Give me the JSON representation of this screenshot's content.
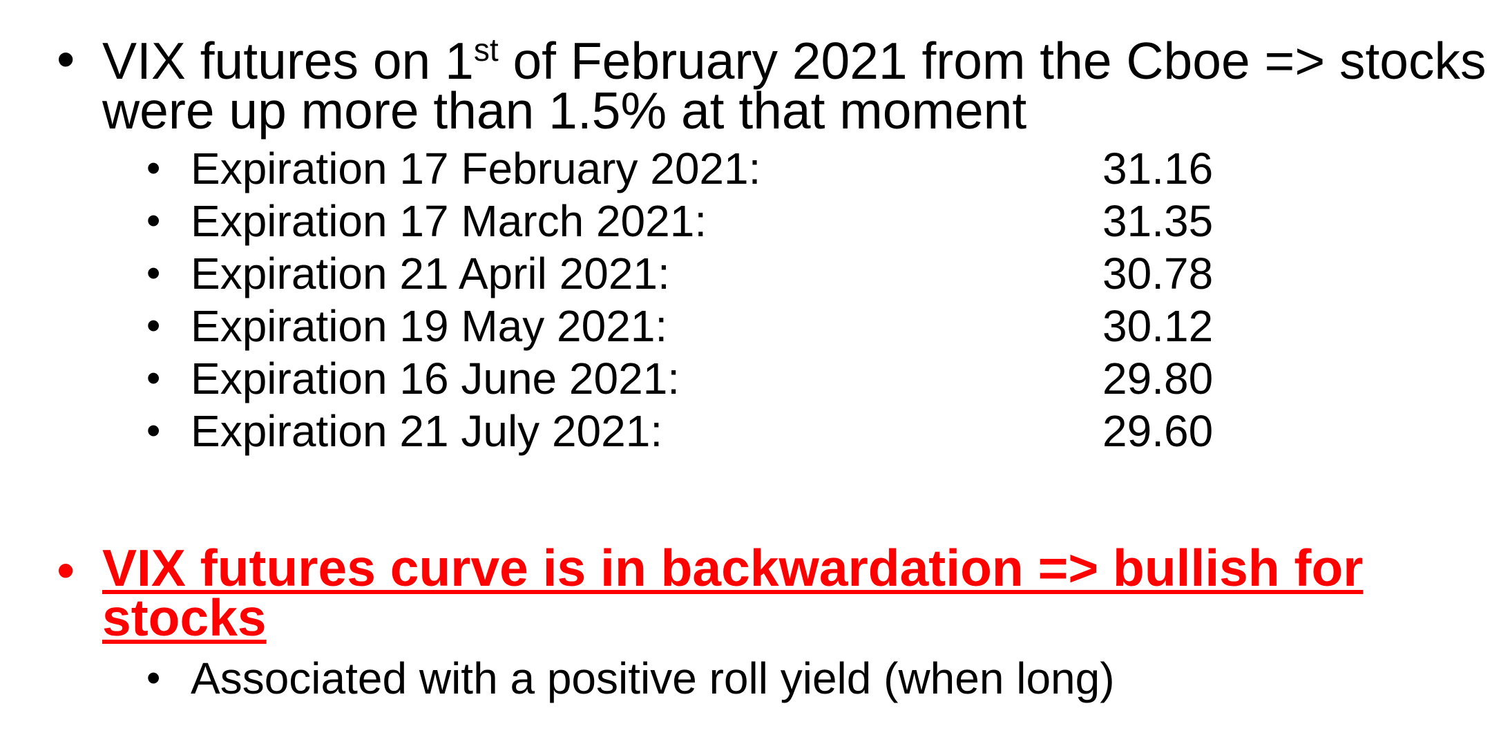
{
  "bullet_char": "•",
  "first_point": {
    "text_before_sup": "VIX futures on 1",
    "sup": "st",
    "text_after_sup": " of February 2021 from the Cboe => stocks were up more than 1.5% at that moment"
  },
  "expirations": [
    {
      "label": "Expiration 17 February 2021:",
      "value": "31.16"
    },
    {
      "label": "Expiration 17 March 2021:",
      "value": "31.35"
    },
    {
      "label": "Expiration 21 April 2021:",
      "value": "30.78"
    },
    {
      "label": "Expiration 19 May 2021:",
      "value": "30.12"
    },
    {
      "label": "Expiration 16 June 2021:",
      "value": "29.80"
    },
    {
      "label": "Expiration 21 July 2021:",
      "value": "29.60"
    }
  ],
  "second_point": {
    "text": "VIX futures curve is in backwardation => bullish for stocks",
    "color": "#ff0000"
  },
  "second_sub": {
    "text": "Associated with a positive roll yield (when long)"
  }
}
